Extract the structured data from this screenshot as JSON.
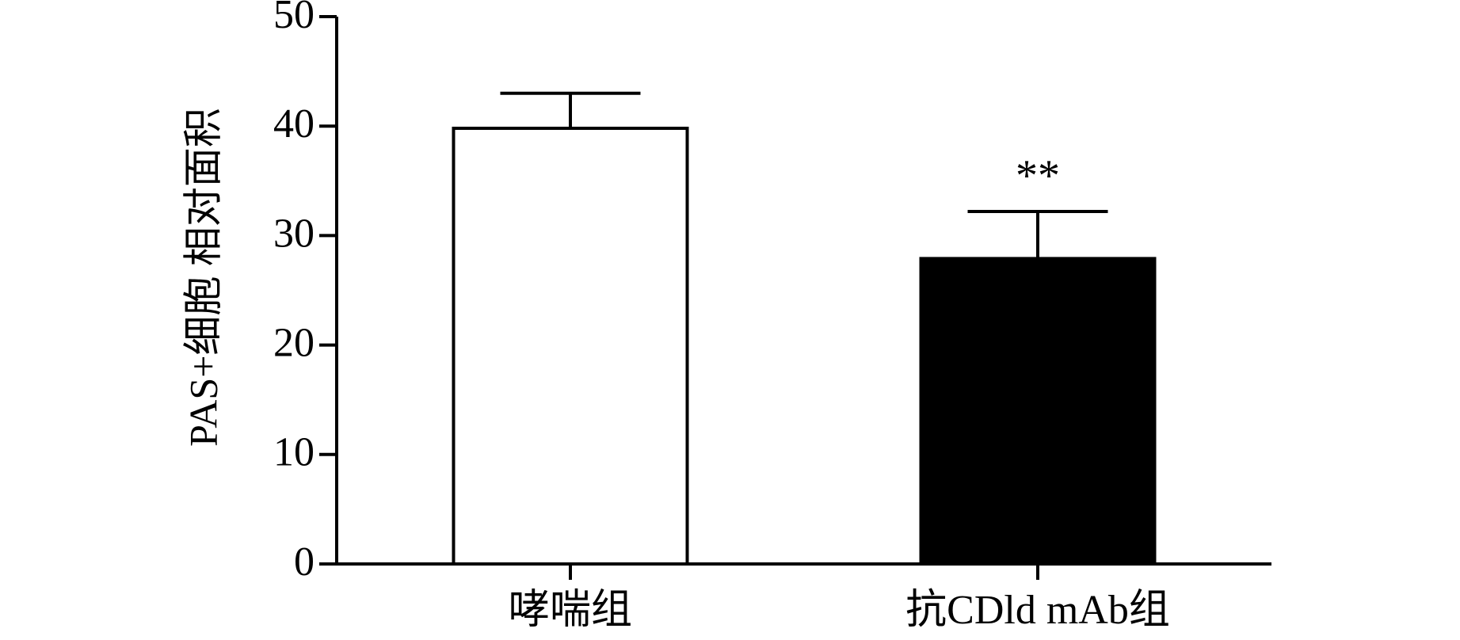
{
  "chart_data": {
    "type": "bar",
    "y_label": "PAS+细胞 相对面积",
    "categories": [
      "哮喘组",
      "抗CDld mAb组"
    ],
    "values": [
      39.8,
      27.9
    ],
    "errors": [
      3.2,
      4.3
    ],
    "colors": [
      "#ffffff",
      "#000000"
    ],
    "edge_color": "#000000",
    "ylim": [
      0,
      50
    ],
    "yticks": [
      0,
      10,
      20,
      30,
      40,
      50
    ],
    "annotations": [
      {
        "text": "**",
        "category": "抗CDld mAb组"
      }
    ]
  }
}
